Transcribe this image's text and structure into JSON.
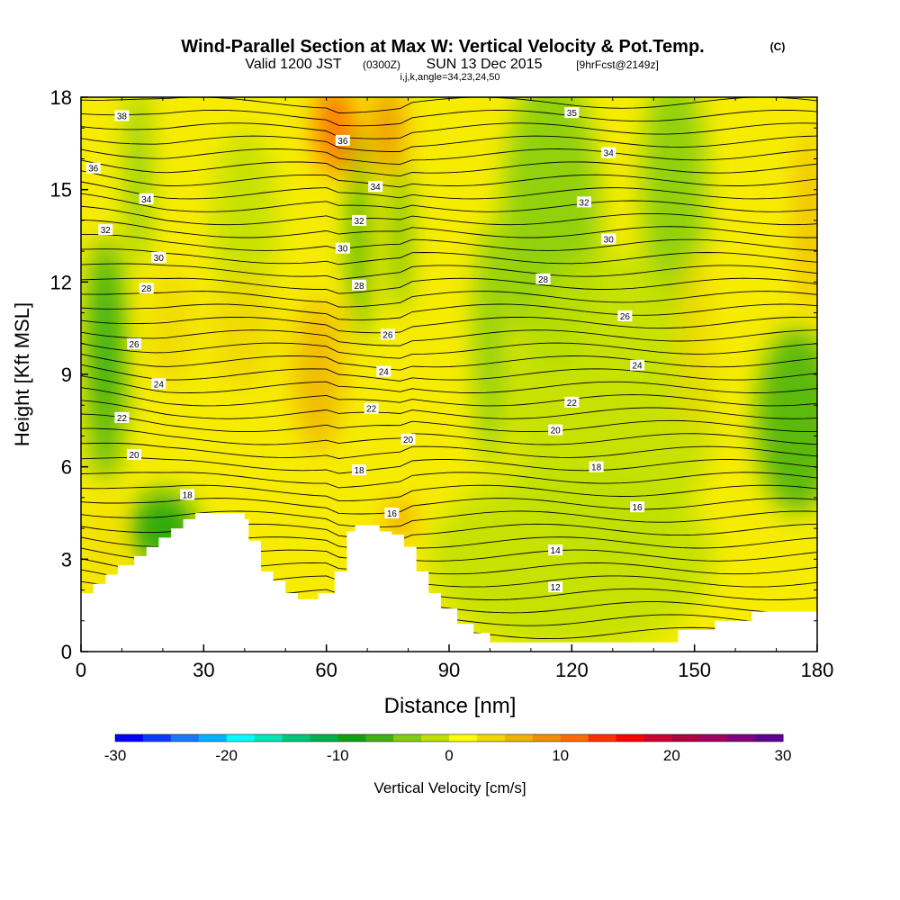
{
  "chart_data": {
    "type": "heatmap",
    "title": "Wind-Parallel Section at Max W: Vertical Velocity & Pot.Temp.",
    "title_mark": "(C)",
    "subtitle_valid": "Valid 1200 JST",
    "subtitle_utc": "(0300Z)",
    "subtitle_date": "SUN 13 Dec 2015",
    "subtitle_fcst": "[9hrFcst@2149z]",
    "subtitle2": "i,j,k,angle=34,23,24,50",
    "xlabel": "Distance [nm]",
    "ylabel": "Height [Kft MSL]",
    "xlim": [
      0,
      180
    ],
    "ylim": [
      0,
      18
    ],
    "xticks": [
      0,
      30,
      60,
      90,
      120,
      150,
      180
    ],
    "yticks": [
      0,
      3,
      6,
      9,
      12,
      15,
      18
    ],
    "colorbar": {
      "label": "Vertical Velocity [cm/s]",
      "range": [
        -30,
        30
      ],
      "ticks": [
        -30,
        -20,
        -10,
        0,
        10,
        20,
        30
      ],
      "colors": [
        "#0000ff",
        "#0a3cff",
        "#1a78ff",
        "#00b4ff",
        "#00ffff",
        "#00e6b4",
        "#00c878",
        "#00b04a",
        "#10a010",
        "#40b010",
        "#80cc10",
        "#c0e000",
        "#ffff00",
        "#f0d800",
        "#f0b400",
        "#f09000",
        "#ff6a00",
        "#ff3000",
        "#ff0000",
        "#d00030",
        "#b00040",
        "#a00060",
        "#800080",
        "#600090"
      ]
    },
    "terrain": [
      [
        0,
        1.9
      ],
      [
        3,
        1.9
      ],
      [
        3,
        2.2
      ],
      [
        6,
        2.2
      ],
      [
        6,
        2.5
      ],
      [
        9,
        2.5
      ],
      [
        9,
        2.8
      ],
      [
        13,
        2.8
      ],
      [
        13,
        3.1
      ],
      [
        16,
        3.1
      ],
      [
        16,
        3.4
      ],
      [
        19,
        3.4
      ],
      [
        19,
        3.7
      ],
      [
        22,
        3.7
      ],
      [
        22,
        4.0
      ],
      [
        25,
        4.0
      ],
      [
        25,
        4.3
      ],
      [
        28,
        4.3
      ],
      [
        28,
        4.5
      ],
      [
        40,
        4.5
      ],
      [
        40,
        4.3
      ],
      [
        41,
        4.3
      ],
      [
        41,
        3.6
      ],
      [
        44,
        3.6
      ],
      [
        44,
        2.6
      ],
      [
        47,
        2.6
      ],
      [
        47,
        2.3
      ],
      [
        50,
        2.3
      ],
      [
        50,
        1.9
      ],
      [
        53,
        1.9
      ],
      [
        53,
        1.7
      ],
      [
        58,
        1.7
      ],
      [
        58,
        1.9
      ],
      [
        62,
        1.9
      ],
      [
        62,
        2.6
      ],
      [
        65,
        2.6
      ],
      [
        65,
        3.9
      ],
      [
        67,
        3.9
      ],
      [
        67,
        4.1
      ],
      [
        73,
        4.1
      ],
      [
        73,
        3.9
      ],
      [
        76,
        3.9
      ],
      [
        76,
        3.8
      ],
      [
        79,
        3.8
      ],
      [
        79,
        3.4
      ],
      [
        82,
        3.4
      ],
      [
        82,
        2.6
      ],
      [
        85,
        2.6
      ],
      [
        85,
        1.9
      ],
      [
        88,
        1.9
      ],
      [
        88,
        1.4
      ],
      [
        92,
        1.4
      ],
      [
        92,
        0.9
      ],
      [
        96,
        0.9
      ],
      [
        96,
        0.6
      ],
      [
        100,
        0.6
      ],
      [
        100,
        0.3
      ],
      [
        146,
        0.3
      ],
      [
        146,
        0.7
      ],
      [
        155,
        0.7
      ],
      [
        155,
        1.0
      ],
      [
        164,
        1.0
      ],
      [
        164,
        1.3
      ],
      [
        180,
        1.3
      ]
    ],
    "theta_labels": [
      {
        "x": 10,
        "y": 17.4,
        "t": "38"
      },
      {
        "x": 120,
        "y": 17.5,
        "t": "35"
      },
      {
        "x": 3,
        "y": 15.7,
        "t": "36"
      },
      {
        "x": 64,
        "y": 16.6,
        "t": "36"
      },
      {
        "x": 129,
        "y": 16.2,
        "t": "34"
      },
      {
        "x": 16,
        "y": 14.7,
        "t": "34"
      },
      {
        "x": 72,
        "y": 15.1,
        "t": "34"
      },
      {
        "x": 123,
        "y": 14.6,
        "t": "32"
      },
      {
        "x": 6,
        "y": 13.7,
        "t": "32"
      },
      {
        "x": 68,
        "y": 14.0,
        "t": "32"
      },
      {
        "x": 129,
        "y": 13.4,
        "t": "30"
      },
      {
        "x": 19,
        "y": 12.8,
        "t": "30"
      },
      {
        "x": 64,
        "y": 13.1,
        "t": "30"
      },
      {
        "x": 113,
        "y": 12.1,
        "t": "28"
      },
      {
        "x": 16,
        "y": 11.8,
        "t": "28"
      },
      {
        "x": 68,
        "y": 11.9,
        "t": "28"
      },
      {
        "x": 133,
        "y": 10.9,
        "t": "26"
      },
      {
        "x": 13,
        "y": 10.0,
        "t": "26"
      },
      {
        "x": 75,
        "y": 10.3,
        "t": "26"
      },
      {
        "x": 136,
        "y": 9.3,
        "t": "24"
      },
      {
        "x": 19,
        "y": 8.7,
        "t": "24"
      },
      {
        "x": 74,
        "y": 9.1,
        "t": "24"
      },
      {
        "x": 120,
        "y": 8.1,
        "t": "22"
      },
      {
        "x": 10,
        "y": 7.6,
        "t": "22"
      },
      {
        "x": 71,
        "y": 7.9,
        "t": "22"
      },
      {
        "x": 116,
        "y": 7.2,
        "t": "20"
      },
      {
        "x": 13,
        "y": 6.4,
        "t": "20"
      },
      {
        "x": 80,
        "y": 6.9,
        "t": "20"
      },
      {
        "x": 126,
        "y": 6.0,
        "t": "18"
      },
      {
        "x": 26,
        "y": 5.1,
        "t": "18"
      },
      {
        "x": 68,
        "y": 5.9,
        "t": "18"
      },
      {
        "x": 136,
        "y": 4.7,
        "t": "16"
      },
      {
        "x": 76,
        "y": 4.5,
        "t": "16"
      },
      {
        "x": 116,
        "y": 3.3,
        "t": "14"
      },
      {
        "x": 116,
        "y": 2.1,
        "t": "12"
      }
    ],
    "velocity_features": [
      {
        "x": 6,
        "y": 10.5,
        "rx": 3.5,
        "ry": 2.4,
        "w": -12
      },
      {
        "x": 6,
        "y": 9.5,
        "rx": 5,
        "ry": 4,
        "w": -6
      },
      {
        "x": 14,
        "y": 15.5,
        "rx": 3,
        "ry": 3,
        "w": -3
      },
      {
        "x": 40,
        "y": 14,
        "rx": 8,
        "ry": 3,
        "w": -2
      },
      {
        "x": 62,
        "y": 17,
        "rx": 5,
        "ry": 1.5,
        "w": 10
      },
      {
        "x": 75,
        "y": 17,
        "rx": 4,
        "ry": 1.5,
        "w": 8
      },
      {
        "x": 68,
        "y": 13.5,
        "rx": 2,
        "ry": 3.5,
        "w": -8
      },
      {
        "x": 78,
        "y": 13.5,
        "rx": 2,
        "ry": 2.5,
        "w": -7
      },
      {
        "x": 58,
        "y": 9,
        "rx": 6,
        "ry": 2.5,
        "w": 5
      },
      {
        "x": 40,
        "y": 10.5,
        "rx": 8,
        "ry": 2,
        "w": 4
      },
      {
        "x": 22,
        "y": 10.5,
        "rx": 5,
        "ry": 2,
        "w": 3
      },
      {
        "x": 115,
        "y": 14,
        "rx": 12,
        "ry": 5,
        "w": -3
      },
      {
        "x": 145,
        "y": 15,
        "rx": 8,
        "ry": 4,
        "w": -3
      },
      {
        "x": 130,
        "y": 8,
        "rx": 25,
        "ry": 5,
        "w": -2
      },
      {
        "x": 175,
        "y": 7.5,
        "rx": 10,
        "ry": 3,
        "w": -6
      },
      {
        "x": 120,
        "y": 3,
        "rx": 35,
        "ry": 3,
        "w": -2
      },
      {
        "x": 20,
        "y": 4,
        "rx": 8,
        "ry": 1.2,
        "w": -10
      },
      {
        "x": 78,
        "y": 4.3,
        "rx": 3,
        "ry": 0.6,
        "w": 8
      },
      {
        "x": 150,
        "y": 10,
        "rx": 4,
        "ry": 3,
        "w": 3
      },
      {
        "x": 178,
        "y": 14,
        "rx": 3,
        "ry": 3,
        "w": 5
      },
      {
        "x": 100,
        "y": 10,
        "rx": 4,
        "ry": 4,
        "w": -3
      },
      {
        "x": 5,
        "y": 3.5,
        "rx": 3,
        "ry": 1.5,
        "w": 3
      }
    ]
  }
}
